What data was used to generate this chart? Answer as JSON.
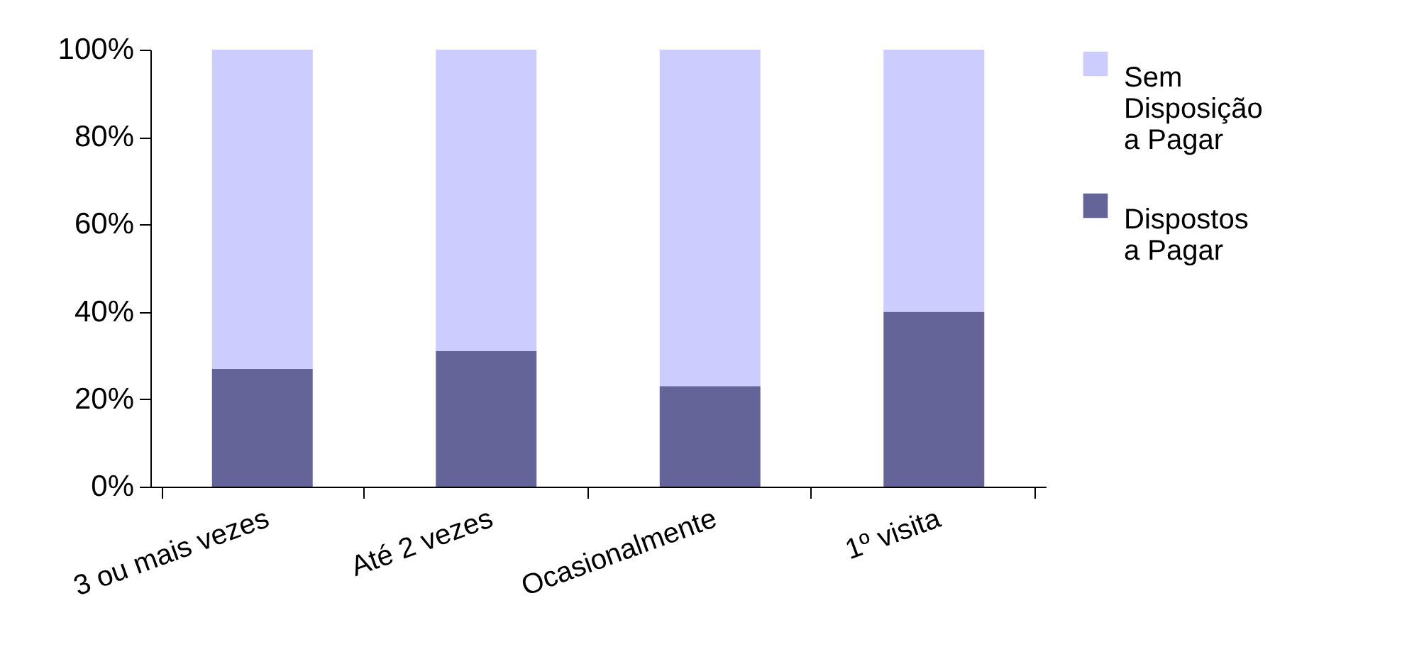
{
  "chart_data": {
    "type": "bar",
    "stacked": true,
    "categories": [
      "3 ou mais vezes",
      "Até 2 vezes",
      "Ocasionalmente",
      "1º visita"
    ],
    "series": [
      {
        "name": "Dispostos a Pagar",
        "color": "#646498",
        "values": [
          27,
          31,
          23,
          40
        ]
      },
      {
        "name": "Sem Disposição a Pagar",
        "color": "#ccccff",
        "values": [
          73,
          69,
          77,
          60
        ]
      }
    ],
    "ylim": [
      0,
      100
    ],
    "yticks": [
      {
        "value": 0,
        "label": "0%"
      },
      {
        "value": 20,
        "label": "20%"
      },
      {
        "value": 40,
        "label": "40%"
      },
      {
        "value": 60,
        "label": "60%"
      },
      {
        "value": 80,
        "label": "80%"
      },
      {
        "value": 100,
        "label": "100%"
      }
    ],
    "legend": "right",
    "grid": false
  }
}
